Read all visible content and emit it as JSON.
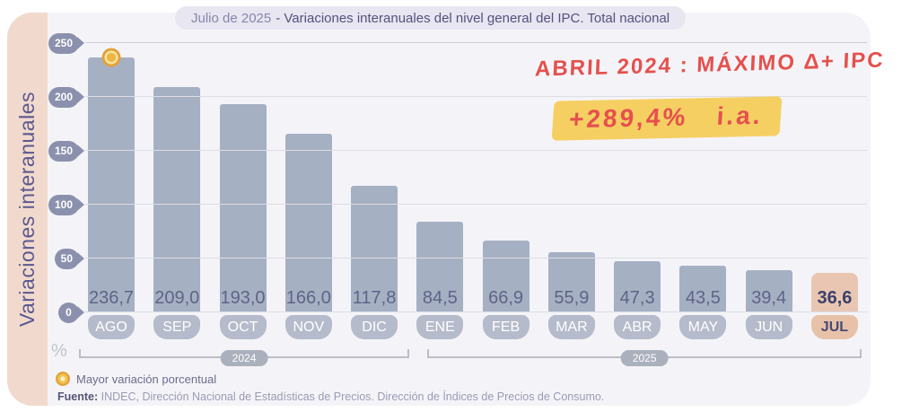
{
  "header": {
    "period": "Julio de 2025",
    "title_rest": "- Variaciones interanuales del nivel general del IPC. Total nacional"
  },
  "chart_data": {
    "type": "bar",
    "title": "Julio de 2025 - Variaciones interanuales del nivel general del IPC. Total nacional",
    "ylabel": "Variaciones interanuales",
    "xlabel": "",
    "unit": "%",
    "ylim": [
      0,
      250
    ],
    "yticks": [
      0,
      50,
      100,
      150,
      200,
      250
    ],
    "grid": true,
    "legend_position": "bottom-left",
    "categories": [
      "AGO",
      "SEP",
      "OCT",
      "NOV",
      "DIC",
      "ENE",
      "FEB",
      "MAR",
      "ABR",
      "MAY",
      "JUN",
      "JUL"
    ],
    "values": [
      236.7,
      209.0,
      193.0,
      166.0,
      117.8,
      84.5,
      66.9,
      55.9,
      47.3,
      43.5,
      39.4,
      36.6
    ],
    "value_labels": [
      "236,7",
      "209,0",
      "193,0",
      "166,0",
      "117,8",
      "84,5",
      "66,9",
      "55,9",
      "47,3",
      "43,5",
      "39,4",
      "36,6"
    ],
    "year_groups": [
      {
        "label": "2024",
        "start_index": 0,
        "end_index": 4
      },
      {
        "label": "2025",
        "start_index": 5,
        "end_index": 11
      }
    ],
    "highlight_category": "JUL",
    "max_marker": {
      "category": "AGO",
      "value_label": "236,7"
    }
  },
  "legend": {
    "label": "Mayor variación porcentual"
  },
  "source": {
    "prefix": "Fuente:",
    "text": " INDEC, Dirección Nacional de Estadísticas de Precios. Dirección de Índices de Precios de Consumo."
  },
  "annotations": {
    "line1": "ABRIL 2024 : MÁXIMO Δ+ IPC",
    "line2": "+289,4%   i.a."
  },
  "colors": {
    "bar": "#a6b0c3",
    "bar_highlight": "#e9c6b2",
    "month_pill": "#b5bbca",
    "month_pill_highlight": "#e8c1a9",
    "axis_pin": "#8b91ad",
    "marker_orange": "#e2a23c",
    "annotation_red": "#e5504d",
    "annotation_highlight_yellow": "#f6cf63",
    "stripe_peach": "#f1dacd",
    "card_background": "#f4f4f8",
    "title_text": "#55517e"
  }
}
